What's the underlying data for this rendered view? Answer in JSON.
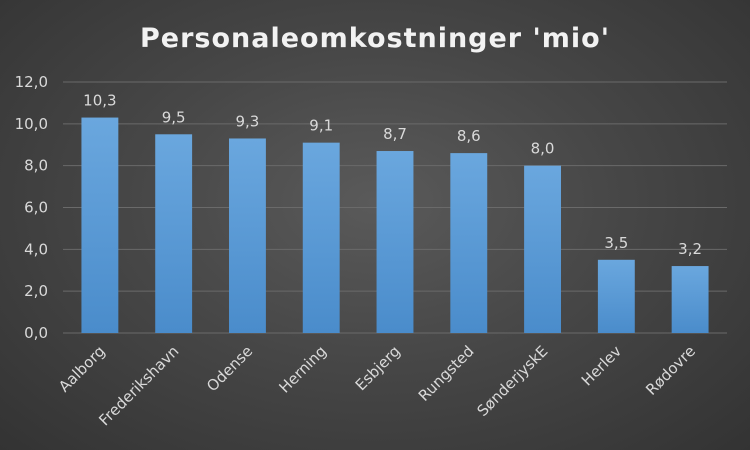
{
  "chart_data": {
    "type": "bar",
    "title": "Personaleomkostninger 'mio'",
    "categories": [
      "Aalborg",
      "Frederikshavn",
      "Odense",
      "Herning",
      "Esbjerg",
      "Rungsted",
      "SønderjyskE",
      "Herlev",
      "Rødovre"
    ],
    "values": [
      10.3,
      9.5,
      9.3,
      9.1,
      8.7,
      8.6,
      8.0,
      3.5,
      3.2
    ],
    "data_labels": [
      "10,3",
      "9,5",
      "9,3",
      "9,1",
      "8,7",
      "8,6",
      "8,0",
      "3,5",
      "3,2"
    ],
    "xlabel": "",
    "ylabel": "",
    "ylim": [
      0,
      12
    ],
    "yticks": [
      0,
      2,
      4,
      6,
      8,
      10,
      12
    ],
    "ytick_labels": [
      "0,0",
      "2,0",
      "4,0",
      "6,0",
      "8,0",
      "10,0",
      "12,0"
    ],
    "grid": true,
    "legend": "none",
    "bar_color": "#5b9bd5"
  }
}
